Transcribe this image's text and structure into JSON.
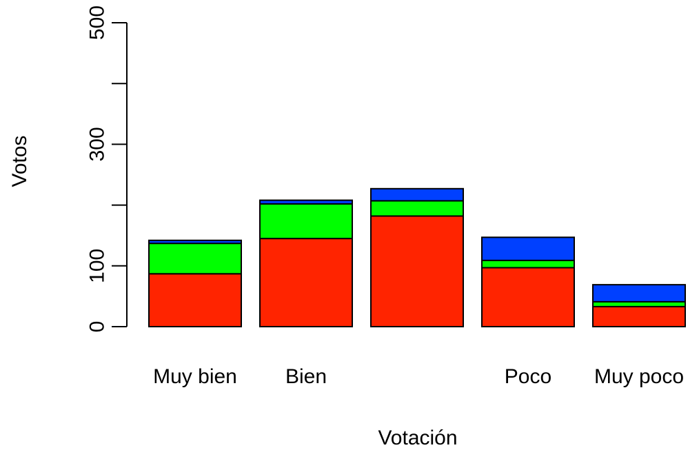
{
  "chart_data": {
    "type": "bar",
    "stacked": true,
    "title": "",
    "xlabel": "Votación",
    "ylabel": "Votos",
    "ylim": [
      0,
      500
    ],
    "y_ticks": [
      0,
      100,
      300,
      500
    ],
    "y_tick_marks": [
      0,
      100,
      200,
      300,
      400,
      500
    ],
    "categories": [
      "Muy bien",
      "Bien",
      "",
      "Poco",
      "Muy poco"
    ],
    "series": [
      {
        "color": "#FF2400",
        "values": [
          87,
          145,
          182,
          97,
          33
        ]
      },
      {
        "color": "#00FF00",
        "values": [
          50,
          57,
          25,
          12,
          8
        ]
      },
      {
        "color": "#0040FF",
        "values": [
          5,
          6,
          20,
          38,
          28
        ]
      }
    ],
    "grid": false,
    "legend": "none"
  }
}
